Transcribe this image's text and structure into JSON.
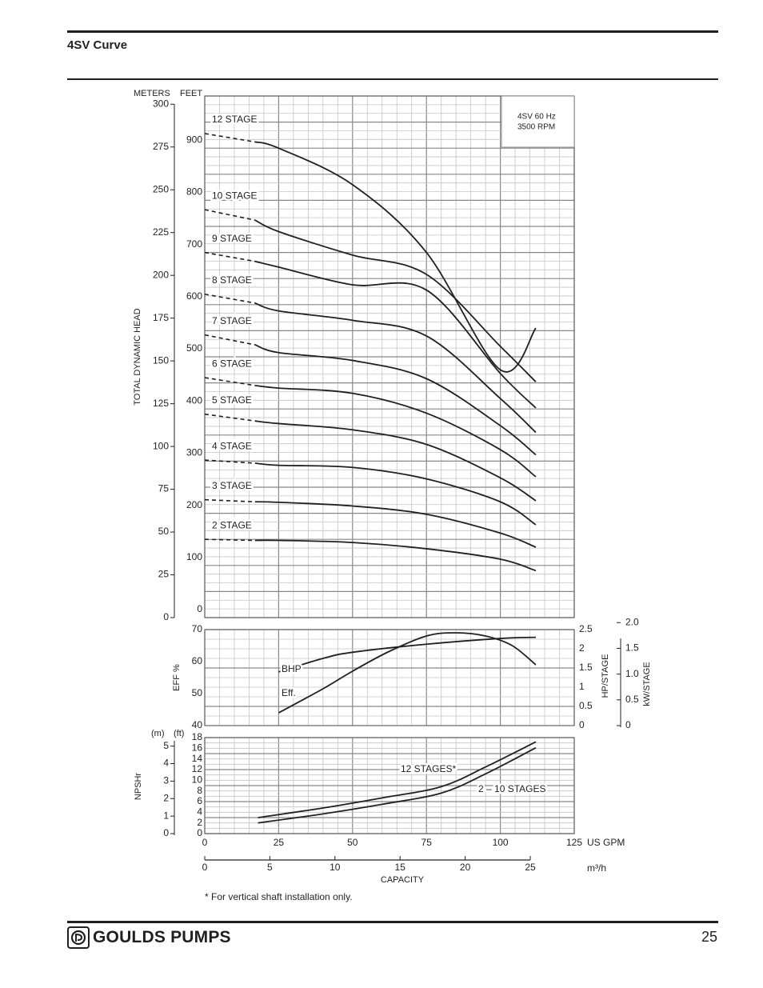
{
  "header": {
    "title": "4SV Curve"
  },
  "footer": {
    "brand": "GOULDS PUMPS",
    "page_number": "25",
    "logo_icon": "goulds-gp-icon"
  },
  "footnote": "* For vertical shaft installation only.",
  "chart_data": [
    {
      "type": "line",
      "name": "head",
      "info_box": [
        "4SV  60 Hz",
        "3500 RPM"
      ],
      "ylabel": "TOTAL DYNAMIC HEAD",
      "unit_labels": [
        "METERS",
        "FEET"
      ],
      "ylim_feet": [
        0,
        1000
      ],
      "ylim_meters": [
        0,
        300
      ],
      "yticks_meters": [
        "0",
        "25",
        "50",
        "75",
        "100",
        "125",
        "150",
        "175",
        "200",
        "225",
        "250",
        "275",
        "300"
      ],
      "yticks_feet": [
        "0",
        "100",
        "200",
        "300",
        "400",
        "500",
        "600",
        "700",
        "800",
        "900"
      ],
      "xlim_gpm": [
        0,
        125
      ],
      "grid": true,
      "dashed_until_gpm": 17,
      "series": [
        {
          "name": "12 STAGE",
          "x": [
            0,
            17,
            25,
            50,
            75,
            100,
            112
          ],
          "y": [
            928,
            912,
            900,
            830,
            700,
            475,
            555
          ]
        },
        {
          "name": "10 STAGE",
          "x": [
            0,
            17,
            25,
            50,
            75,
            100,
            112
          ],
          "y": [
            782,
            762,
            740,
            695,
            658,
            520,
            452
          ]
        },
        {
          "name": "9 STAGE",
          "x": [
            0,
            17,
            25,
            50,
            75,
            100,
            112
          ],
          "y": [
            700,
            683,
            672,
            638,
            628,
            468,
            402
          ]
        },
        {
          "name": "8 STAGE",
          "x": [
            0,
            17,
            25,
            50,
            75,
            100,
            112
          ],
          "y": [
            620,
            603,
            588,
            570,
            540,
            420,
            355
          ]
        },
        {
          "name": "7 STAGE",
          "x": [
            0,
            17,
            25,
            50,
            75,
            100,
            112
          ],
          "y": [
            542,
            523,
            508,
            493,
            458,
            368,
            312
          ]
        },
        {
          "name": "6 STAGE",
          "x": [
            0,
            17,
            25,
            50,
            75,
            100,
            112
          ],
          "y": [
            460,
            445,
            440,
            430,
            392,
            322,
            270
          ]
        },
        {
          "name": "5 STAGE",
          "x": [
            0,
            17,
            25,
            50,
            75,
            100,
            112
          ],
          "y": [
            390,
            377,
            372,
            360,
            332,
            268,
            224
          ]
        },
        {
          "name": "4 STAGE",
          "x": [
            0,
            17,
            25,
            50,
            75,
            100,
            112
          ],
          "y": [
            302,
            296,
            292,
            288,
            266,
            222,
            178
          ]
        },
        {
          "name": "3 STAGE",
          "x": [
            0,
            17,
            25,
            50,
            75,
            100,
            112
          ],
          "y": [
            226,
            222,
            221,
            214,
            198,
            162,
            135
          ]
        },
        {
          "name": "2 STAGE",
          "x": [
            0,
            17,
            25,
            50,
            75,
            100,
            112
          ],
          "y": [
            150,
            148,
            148,
            144,
            132,
            112,
            90
          ]
        }
      ]
    },
    {
      "type": "line",
      "name": "efficiency_bhp",
      "ylabel": "EFF %",
      "ylim_eff": [
        40,
        70
      ],
      "yticks_eff": [
        "40",
        "50",
        "60",
        "70"
      ],
      "right_axis_1": {
        "label": "HP/STAGE",
        "ticks": [
          "0",
          "0.5",
          "1",
          "1.5",
          "2",
          "2.5"
        ],
        "range": [
          0,
          2.5
        ]
      },
      "right_axis_2": {
        "label": "kW/STAGE",
        "ticks": [
          "0",
          "0.5",
          "1.0",
          "1.5",
          "2.0"
        ]
      },
      "grid": true,
      "series": [
        {
          "name": "Eff.",
          "label": "Eff.",
          "x": [
            25,
            40,
            50,
            62,
            75,
            85,
            95,
            104,
            112
          ],
          "y": [
            44,
            51.5,
            57,
            63,
            68,
            69,
            68,
            65,
            59
          ]
        },
        {
          "name": "BHP",
          "label": "BHP",
          "x": [
            25,
            40,
            50,
            75,
            100,
            112
          ],
          "y": [
            1.4,
            1.75,
            1.91,
            2.12,
            2.27,
            2.3
          ]
        }
      ]
    },
    {
      "type": "line",
      "name": "npshr",
      "ylabel": "NPSHr",
      "unit_labels": [
        "(m)",
        "(ft)"
      ],
      "yticks_m": [
        "0",
        "1",
        "2",
        "3",
        "4",
        "5"
      ],
      "yticks_ft": [
        "0",
        "2",
        "4",
        "6",
        "8",
        "10",
        "12",
        "14",
        "16",
        "18"
      ],
      "ylim_ft": [
        0,
        18
      ],
      "xlabel": "CAPACITY",
      "xticks_gpm": [
        "0",
        "25",
        "50",
        "75",
        "100",
        "125"
      ],
      "xunit_gpm": "US GPM",
      "xticks_m3h": [
        "0",
        "5",
        "10",
        "15",
        "20",
        "25"
      ],
      "xunit_m3h": "m³/h",
      "grid": true,
      "series": [
        {
          "name": "12 STAGES*",
          "label": "12 STAGES*",
          "x": [
            18,
            40,
            60,
            80,
            95,
            112
          ],
          "y": [
            3,
            4.8,
            6.7,
            8.8,
            12.5,
            17.2
          ]
        },
        {
          "name": "2 – 10 STAGES",
          "label": "2 – 10 STAGES",
          "x": [
            18,
            40,
            60,
            80,
            95,
            112
          ],
          "y": [
            2,
            3.7,
            5.5,
            7.6,
            11.2,
            16.1
          ]
        }
      ]
    }
  ]
}
